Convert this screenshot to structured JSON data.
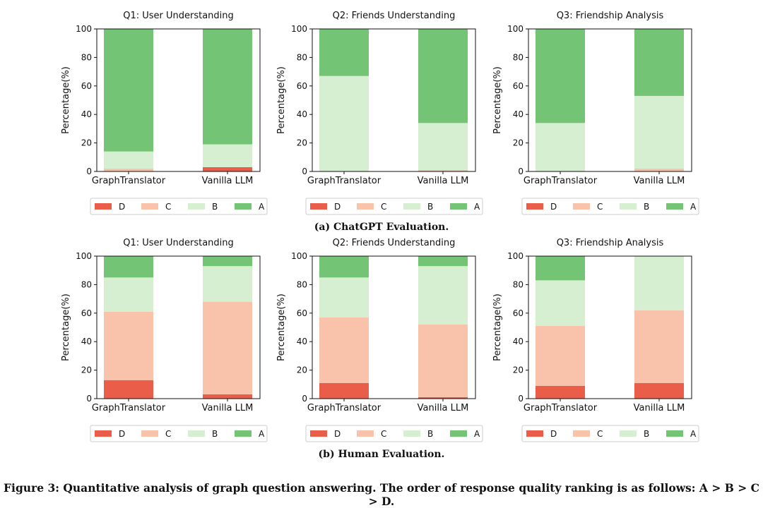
{
  "colors": {
    "D": "#e95d49",
    "C": "#f9c2ab",
    "B": "#d5efd0",
    "A": "#74c476"
  },
  "captions": {
    "a": "(a) ChatGPT Evaluation.",
    "b": "(b) Human Evaluation.",
    "figure": "Figure 3: Quantitative analysis of graph question answering. The order of response quality ranking is as follows: A > B > C > D."
  },
  "chart_data": [
    {
      "type": "bar",
      "stacked": true,
      "group": "ChatGPT Evaluation",
      "title": "Q1: User Understanding",
      "ylabel": "Percentage(%)",
      "ylim": [
        0,
        100
      ],
      "yticks": [
        0,
        20,
        40,
        60,
        80,
        100
      ],
      "categories": [
        "GraphTranslator",
        "Vanilla LLM"
      ],
      "series": [
        {
          "name": "D",
          "values": [
            0,
            3
          ]
        },
        {
          "name": "C",
          "values": [
            2,
            0
          ]
        },
        {
          "name": "B",
          "values": [
            12,
            16
          ]
        },
        {
          "name": "A",
          "values": [
            86,
            81
          ]
        }
      ],
      "legend": [
        "D",
        "C",
        "B",
        "A"
      ],
      "legend_position": "bottom"
    },
    {
      "type": "bar",
      "stacked": true,
      "group": "ChatGPT Evaluation",
      "title": "Q2: Friends Understanding",
      "ylabel": "Percentage(%)",
      "ylim": [
        0,
        100
      ],
      "yticks": [
        0,
        20,
        40,
        60,
        80,
        100
      ],
      "categories": [
        "GraphTranslator",
        "Vanilla LLM"
      ],
      "series": [
        {
          "name": "D",
          "values": [
            0,
            0
          ]
        },
        {
          "name": "C",
          "values": [
            0,
            1
          ]
        },
        {
          "name": "B",
          "values": [
            67,
            33
          ]
        },
        {
          "name": "A",
          "values": [
            33,
            66
          ]
        }
      ],
      "legend": [
        "D",
        "C",
        "B",
        "A"
      ],
      "legend_position": "bottom"
    },
    {
      "type": "bar",
      "stacked": true,
      "group": "ChatGPT Evaluation",
      "title": "Q3: Friendship Analysis",
      "ylabel": "Percentage(%)",
      "ylim": [
        0,
        100
      ],
      "yticks": [
        0,
        20,
        40,
        60,
        80,
        100
      ],
      "categories": [
        "GraphTranslator",
        "Vanilla LLM"
      ],
      "series": [
        {
          "name": "D",
          "values": [
            0,
            0
          ]
        },
        {
          "name": "C",
          "values": [
            0,
            2
          ]
        },
        {
          "name": "B",
          "values": [
            34,
            51
          ]
        },
        {
          "name": "A",
          "values": [
            66,
            47
          ]
        }
      ],
      "legend": [
        "D",
        "C",
        "B",
        "A"
      ],
      "legend_position": "bottom"
    },
    {
      "type": "bar",
      "stacked": true,
      "group": "Human Evaluation",
      "title": "Q1: User Understanding",
      "ylabel": "Percentage(%)",
      "ylim": [
        0,
        100
      ],
      "yticks": [
        0,
        20,
        40,
        60,
        80,
        100
      ],
      "categories": [
        "GraphTranslator",
        "Vanilla LLM"
      ],
      "series": [
        {
          "name": "D",
          "values": [
            13,
            3
          ]
        },
        {
          "name": "C",
          "values": [
            48,
            65
          ]
        },
        {
          "name": "B",
          "values": [
            24,
            25
          ]
        },
        {
          "name": "A",
          "values": [
            15,
            7
          ]
        }
      ],
      "legend": [
        "D",
        "C",
        "B",
        "A"
      ],
      "legend_position": "bottom"
    },
    {
      "type": "bar",
      "stacked": true,
      "group": "Human Evaluation",
      "title": "Q2: Friends Understanding",
      "ylabel": "Percentage(%)",
      "ylim": [
        0,
        100
      ],
      "yticks": [
        0,
        20,
        40,
        60,
        80,
        100
      ],
      "categories": [
        "GraphTranslator",
        "Vanilla LLM"
      ],
      "series": [
        {
          "name": "D",
          "values": [
            11,
            1
          ]
        },
        {
          "name": "C",
          "values": [
            46,
            51
          ]
        },
        {
          "name": "B",
          "values": [
            28,
            41
          ]
        },
        {
          "name": "A",
          "values": [
            15,
            7
          ]
        }
      ],
      "legend": [
        "D",
        "C",
        "B",
        "A"
      ],
      "legend_position": "bottom"
    },
    {
      "type": "bar",
      "stacked": true,
      "group": "Human Evaluation",
      "title": "Q3: Friendship Analysis",
      "ylabel": "Percentage(%)",
      "ylim": [
        0,
        100
      ],
      "yticks": [
        0,
        20,
        40,
        60,
        80,
        100
      ],
      "categories": [
        "GraphTranslator",
        "Vanilla LLM"
      ],
      "series": [
        {
          "name": "D",
          "values": [
            9,
            11
          ]
        },
        {
          "name": "C",
          "values": [
            42,
            51
          ]
        },
        {
          "name": "B",
          "values": [
            32,
            38
          ]
        },
        {
          "name": "A",
          "values": [
            17,
            0
          ]
        }
      ],
      "legend": [
        "D",
        "C",
        "B",
        "A"
      ],
      "legend_position": "bottom"
    }
  ]
}
